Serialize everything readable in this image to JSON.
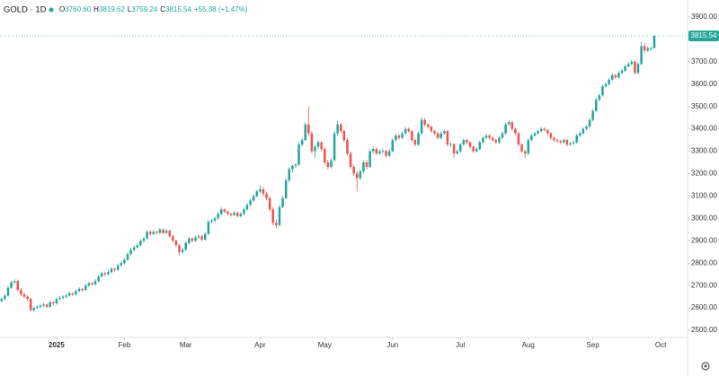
{
  "chart_data": {
    "type": "candlestick",
    "symbol": "GOLD · 1D",
    "fields": [
      {
        "key": "O",
        "value": "3760.60"
      },
      {
        "key": "H",
        "value": "3819.62"
      },
      {
        "key": "L",
        "value": "3759.24"
      },
      {
        "key": "C",
        "value": "3815.54"
      }
    ],
    "change": "+55.38 (+1.47%)",
    "last_price": {
      "value": 3815.54,
      "label": "3815.54"
    },
    "up_color": "#26a69a",
    "down_color": "#ef5350",
    "ylim": [
      2468,
      3976
    ],
    "yticks": [
      {
        "value": 2500,
        "label": "2500.00"
      },
      {
        "value": 2600,
        "label": "2600.00"
      },
      {
        "value": 2700,
        "label": "2700.00"
      },
      {
        "value": 2800,
        "label": "2800.00"
      },
      {
        "value": 2900,
        "label": "2900.00"
      },
      {
        "value": 3000,
        "label": "3000.00"
      },
      {
        "value": 3100,
        "label": "3100.00"
      },
      {
        "value": 3200,
        "label": "3200.00"
      },
      {
        "value": 3300,
        "label": "3300.00"
      },
      {
        "value": 3400,
        "label": "3400.00"
      },
      {
        "value": 3500,
        "label": "3500.00"
      },
      {
        "value": 3600,
        "label": "3600.00"
      },
      {
        "value": 3700,
        "label": "3700.00"
      },
      {
        "value": 3800,
        "label": "3800.00"
      },
      {
        "value": 3900,
        "label": "3900.00"
      }
    ],
    "xlim": [
      -0.5,
      212.3
    ],
    "xticks": [
      {
        "value": 17,
        "label": "2025"
      },
      {
        "value": 38,
        "label": "Feb"
      },
      {
        "value": 57,
        "label": "Mar"
      },
      {
        "value": 80,
        "label": "Apr"
      },
      {
        "value": 100,
        "label": "May"
      },
      {
        "value": 121,
        "label": "Jun"
      },
      {
        "value": 142,
        "label": "Jul"
      },
      {
        "value": 163,
        "label": "Aug"
      },
      {
        "value": 183,
        "label": "Sep"
      },
      {
        "value": 204,
        "label": "Oct"
      }
    ],
    "ohlc": [
      [
        2630,
        2648,
        2625,
        2640
      ],
      [
        2640,
        2662,
        2634,
        2655
      ],
      [
        2655,
        2696,
        2650,
        2690
      ],
      [
        2690,
        2722,
        2684,
        2715
      ],
      [
        2715,
        2728,
        2706,
        2720
      ],
      [
        2720,
        2726,
        2674,
        2680
      ],
      [
        2680,
        2688,
        2652,
        2660
      ],
      [
        2660,
        2668,
        2644,
        2650
      ],
      [
        2650,
        2656,
        2632,
        2640
      ],
      [
        2640,
        2646,
        2584,
        2590
      ],
      [
        2590,
        2608,
        2582,
        2600
      ],
      [
        2600,
        2612,
        2594,
        2605
      ],
      [
        2605,
        2618,
        2598,
        2610
      ],
      [
        2610,
        2622,
        2604,
        2615
      ],
      [
        2615,
        2620,
        2598,
        2605
      ],
      [
        2605,
        2632,
        2600,
        2625
      ],
      [
        2625,
        2630,
        2612,
        2620
      ],
      [
        2620,
        2646,
        2615,
        2640
      ],
      [
        2640,
        2652,
        2634,
        2645
      ],
      [
        2645,
        2656,
        2638,
        2650
      ],
      [
        2650,
        2662,
        2643,
        2655
      ],
      [
        2655,
        2672,
        2650,
        2665
      ],
      [
        2665,
        2670,
        2652,
        2660
      ],
      [
        2660,
        2682,
        2655,
        2675
      ],
      [
        2675,
        2692,
        2670,
        2685
      ],
      [
        2685,
        2690,
        2672,
        2680
      ],
      [
        2680,
        2708,
        2676,
        2700
      ],
      [
        2700,
        2716,
        2694,
        2710
      ],
      [
        2710,
        2716,
        2698,
        2705
      ],
      [
        2705,
        2728,
        2700,
        2720
      ],
      [
        2720,
        2748,
        2714,
        2740
      ],
      [
        2740,
        2762,
        2735,
        2755
      ],
      [
        2755,
        2760,
        2742,
        2750
      ],
      [
        2750,
        2768,
        2744,
        2760
      ],
      [
        2760,
        2782,
        2755,
        2775
      ],
      [
        2775,
        2780,
        2762,
        2770
      ],
      [
        2770,
        2798,
        2765,
        2790
      ],
      [
        2790,
        2808,
        2784,
        2800
      ],
      [
        2800,
        2822,
        2795,
        2815
      ],
      [
        2815,
        2848,
        2810,
        2840
      ],
      [
        2840,
        2868,
        2834,
        2860
      ],
      [
        2860,
        2878,
        2852,
        2870
      ],
      [
        2870,
        2888,
        2864,
        2880
      ],
      [
        2880,
        2908,
        2874,
        2900
      ],
      [
        2900,
        2918,
        2892,
        2910
      ],
      [
        2910,
        2948,
        2905,
        2940
      ],
      [
        2940,
        2946,
        2922,
        2930
      ],
      [
        2930,
        2948,
        2925,
        2940
      ],
      [
        2940,
        2945,
        2928,
        2935
      ],
      [
        2935,
        2958,
        2930,
        2950
      ],
      [
        2950,
        2955,
        2928,
        2935
      ],
      [
        2935,
        2952,
        2930,
        2945
      ],
      [
        2945,
        2950,
        2914,
        2920
      ],
      [
        2920,
        2926,
        2894,
        2900
      ],
      [
        2900,
        2906,
        2872,
        2880
      ],
      [
        2880,
        2886,
        2834,
        2850
      ],
      [
        2850,
        2868,
        2842,
        2860
      ],
      [
        2860,
        2898,
        2855,
        2890
      ],
      [
        2890,
        2918,
        2884,
        2910
      ],
      [
        2910,
        2916,
        2892,
        2900
      ],
      [
        2900,
        2922,
        2894,
        2915
      ],
      [
        2915,
        2928,
        2908,
        2920
      ],
      [
        2920,
        2926,
        2898,
        2905
      ],
      [
        2905,
        2938,
        2900,
        2930
      ],
      [
        2930,
        2992,
        2925,
        2985
      ],
      [
        2985,
        2998,
        2978,
        2990
      ],
      [
        2990,
        3008,
        2984,
        3000
      ],
      [
        3000,
        3028,
        2994,
        3020
      ],
      [
        3020,
        3048,
        3014,
        3040
      ],
      [
        3040,
        3046,
        3024,
        3030
      ],
      [
        3030,
        3036,
        3014,
        3020
      ],
      [
        3020,
        3026,
        3008,
        3015
      ],
      [
        3015,
        3032,
        3010,
        3025
      ],
      [
        3025,
        3030,
        3004,
        3010
      ],
      [
        3010,
        3028,
        3004,
        3020
      ],
      [
        3020,
        3048,
        3014,
        3040
      ],
      [
        3040,
        3068,
        3034,
        3060
      ],
      [
        3060,
        3088,
        3054,
        3080
      ],
      [
        3080,
        3108,
        3074,
        3100
      ],
      [
        3100,
        3128,
        3094,
        3120
      ],
      [
        3120,
        3148,
        3112,
        3130
      ],
      [
        3130,
        3140,
        3100,
        3110
      ],
      [
        3110,
        3118,
        3080,
        3090
      ],
      [
        3090,
        3100,
        3030,
        3040
      ],
      [
        3040,
        3050,
        2970,
        2980
      ],
      [
        2980,
        2995,
        2955,
        2970
      ],
      [
        2970,
        3060,
        2965,
        3050
      ],
      [
        3050,
        3100,
        3045,
        3090
      ],
      [
        3090,
        3178,
        3085,
        3170
      ],
      [
        3170,
        3228,
        3160,
        3220
      ],
      [
        3220,
        3240,
        3205,
        3235
      ],
      [
        3235,
        3248,
        3225,
        3240
      ],
      [
        3240,
        3340,
        3235,
        3330
      ],
      [
        3330,
        3358,
        3320,
        3350
      ],
      [
        3350,
        3430,
        3345,
        3420
      ],
      [
        3420,
        3500,
        3370,
        3380
      ],
      [
        3380,
        3390,
        3290,
        3300
      ],
      [
        3300,
        3330,
        3270,
        3320
      ],
      [
        3320,
        3350,
        3310,
        3340
      ],
      [
        3340,
        3348,
        3300,
        3310
      ],
      [
        3310,
        3320,
        3240,
        3250
      ],
      [
        3250,
        3262,
        3220,
        3230
      ],
      [
        3230,
        3268,
        3222,
        3260
      ],
      [
        3260,
        3390,
        3255,
        3380
      ],
      [
        3380,
        3435,
        3370,
        3420
      ],
      [
        3420,
        3428,
        3380,
        3390
      ],
      [
        3390,
        3398,
        3340,
        3350
      ],
      [
        3350,
        3360,
        3280,
        3290
      ],
      [
        3290,
        3300,
        3220,
        3230
      ],
      [
        3230,
        3240,
        3190,
        3200
      ],
      [
        3200,
        3210,
        3120,
        3180
      ],
      [
        3180,
        3220,
        3170,
        3210
      ],
      [
        3210,
        3258,
        3200,
        3250
      ],
      [
        3250,
        3262,
        3220,
        3230
      ],
      [
        3230,
        3310,
        3225,
        3300
      ],
      [
        3300,
        3322,
        3290,
        3310
      ],
      [
        3310,
        3318,
        3282,
        3290
      ],
      [
        3290,
        3308,
        3284,
        3300
      ],
      [
        3300,
        3312,
        3290,
        3302
      ],
      [
        3302,
        3306,
        3272,
        3280
      ],
      [
        3280,
        3308,
        3274,
        3300
      ],
      [
        3300,
        3358,
        3295,
        3350
      ],
      [
        3350,
        3378,
        3344,
        3370
      ],
      [
        3370,
        3376,
        3352,
        3360
      ],
      [
        3360,
        3388,
        3354,
        3380
      ],
      [
        3380,
        3408,
        3374,
        3400
      ],
      [
        3400,
        3406,
        3382,
        3390
      ],
      [
        3390,
        3396,
        3342,
        3350
      ],
      [
        3350,
        3356,
        3322,
        3330
      ],
      [
        3330,
        3388,
        3324,
        3380
      ],
      [
        3380,
        3452,
        3374,
        3440
      ],
      [
        3440,
        3448,
        3410,
        3420
      ],
      [
        3420,
        3426,
        3402,
        3410
      ],
      [
        3410,
        3416,
        3382,
        3390
      ],
      [
        3390,
        3396,
        3372,
        3380
      ],
      [
        3380,
        3386,
        3352,
        3360
      ],
      [
        3360,
        3388,
        3354,
        3380
      ],
      [
        3380,
        3398,
        3374,
        3390
      ],
      [
        3390,
        3396,
        3322,
        3330
      ],
      [
        3330,
        3340,
        3318,
        3332
      ],
      [
        3332,
        3336,
        3270,
        3290
      ],
      [
        3290,
        3308,
        3284,
        3300
      ],
      [
        3300,
        3338,
        3294,
        3330
      ],
      [
        3330,
        3358,
        3324,
        3350
      ],
      [
        3350,
        3356,
        3332,
        3340
      ],
      [
        3340,
        3346,
        3312,
        3320
      ],
      [
        3320,
        3326,
        3292,
        3300
      ],
      [
        3300,
        3318,
        3294,
        3310
      ],
      [
        3310,
        3348,
        3304,
        3340
      ],
      [
        3340,
        3368,
        3334,
        3360
      ],
      [
        3360,
        3378,
        3354,
        3370
      ],
      [
        3370,
        3376,
        3352,
        3360
      ],
      [
        3360,
        3366,
        3342,
        3350
      ],
      [
        3350,
        3356,
        3332,
        3340
      ],
      [
        3340,
        3368,
        3334,
        3360
      ],
      [
        3360,
        3388,
        3354,
        3380
      ],
      [
        3380,
        3428,
        3374,
        3420
      ],
      [
        3420,
        3438,
        3414,
        3430
      ],
      [
        3430,
        3436,
        3392,
        3400
      ],
      [
        3400,
        3406,
        3372,
        3380
      ],
      [
        3380,
        3386,
        3322,
        3330
      ],
      [
        3330,
        3336,
        3292,
        3300
      ],
      [
        3300,
        3306,
        3270,
        3290
      ],
      [
        3290,
        3358,
        3284,
        3350
      ],
      [
        3350,
        3378,
        3344,
        3370
      ],
      [
        3370,
        3388,
        3364,
        3380
      ],
      [
        3380,
        3398,
        3374,
        3390
      ],
      [
        3390,
        3408,
        3384,
        3400
      ],
      [
        3400,
        3406,
        3388,
        3395
      ],
      [
        3395,
        3400,
        3372,
        3380
      ],
      [
        3380,
        3386,
        3352,
        3360
      ],
      [
        3360,
        3366,
        3342,
        3350
      ],
      [
        3350,
        3356,
        3338,
        3345
      ],
      [
        3345,
        3352,
        3332,
        3340
      ],
      [
        3340,
        3358,
        3334,
        3350
      ],
      [
        3350,
        3356,
        3322,
        3330
      ],
      [
        3330,
        3342,
        3324,
        3335
      ],
      [
        3335,
        3348,
        3328,
        3340
      ],
      [
        3340,
        3378,
        3334,
        3370
      ],
      [
        3370,
        3388,
        3364,
        3380
      ],
      [
        3380,
        3408,
        3374,
        3400
      ],
      [
        3400,
        3418,
        3394,
        3410
      ],
      [
        3410,
        3448,
        3404,
        3440
      ],
      [
        3440,
        3488,
        3434,
        3480
      ],
      [
        3480,
        3538,
        3474,
        3530
      ],
      [
        3530,
        3558,
        3524,
        3550
      ],
      [
        3550,
        3598,
        3544,
        3590
      ],
      [
        3590,
        3608,
        3584,
        3600
      ],
      [
        3600,
        3628,
        3594,
        3620
      ],
      [
        3620,
        3648,
        3614,
        3640
      ],
      [
        3640,
        3646,
        3622,
        3630
      ],
      [
        3630,
        3658,
        3624,
        3650
      ],
      [
        3650,
        3668,
        3644,
        3660
      ],
      [
        3660,
        3688,
        3654,
        3680
      ],
      [
        3680,
        3698,
        3674,
        3690
      ],
      [
        3690,
        3708,
        3684,
        3700
      ],
      [
        3700,
        3706,
        3642,
        3650
      ],
      [
        3650,
        3698,
        3644,
        3690
      ],
      [
        3690,
        3790,
        3684,
        3770
      ],
      [
        3770,
        3784,
        3740,
        3750
      ],
      [
        3750,
        3768,
        3744,
        3760
      ],
      [
        3760,
        3766,
        3748,
        3760.6
      ],
      [
        3760.6,
        3819.62,
        3759.24,
        3815.54
      ]
    ]
  }
}
